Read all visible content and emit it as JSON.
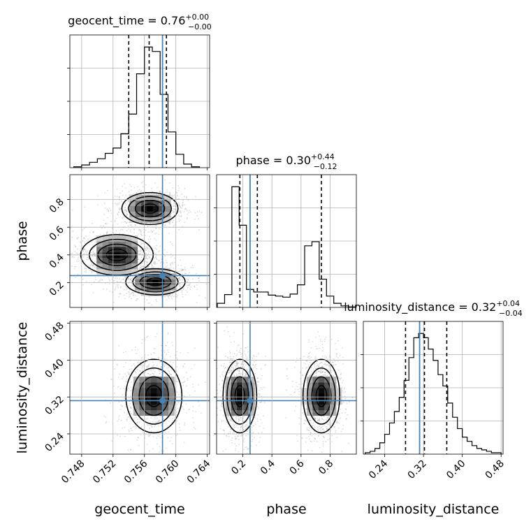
{
  "chart_data": [
    {
      "type": "histogram",
      "panel": "geocent_time-marginal",
      "title_label": "geocent_time = 0.76",
      "title_sup": "+0.00",
      "title_sub": "−0.00",
      "x": [
        0.7475,
        0.7485,
        0.7495,
        0.7505,
        0.7515,
        0.7525,
        0.7535,
        0.7545,
        0.7555,
        0.7565,
        0.7575,
        0.7585,
        0.7595,
        0.7605,
        0.7615,
        0.7625
      ],
      "values": [
        1,
        3,
        6,
        10,
        16,
        22,
        38,
        60,
        105,
        135,
        130,
        82,
        40,
        15,
        4,
        1
      ],
      "quantile_lines": [
        0.754,
        0.7566,
        0.7588
      ],
      "truth": 0.7583,
      "xlim": [
        0.7465,
        0.7643
      ]
    },
    {
      "type": "histogram",
      "panel": "phase-marginal",
      "title_label": "phase = 0.30",
      "title_sup": "+0.44",
      "title_sub": "−0.12",
      "x": [
        0.05,
        0.1,
        0.15,
        0.2,
        0.25,
        0.3,
        0.35,
        0.4,
        0.45,
        0.5,
        0.55,
        0.6,
        0.65,
        0.7,
        0.75,
        0.8,
        0.85,
        0.9,
        0.95
      ],
      "values": [
        8,
        25,
        235,
        160,
        35,
        30,
        30,
        24,
        22,
        20,
        26,
        44,
        120,
        128,
        55,
        22,
        8,
        3,
        1
      ],
      "quantile_lines": [
        0.18,
        0.3,
        0.74
      ],
      "truth": 0.25,
      "xlim": [
        0.02,
        0.98
      ]
    },
    {
      "type": "histogram",
      "panel": "luminosity_distance-marginal",
      "title_label": "luminosity_distance = 0.32",
      "title_sup": "+0.04",
      "title_sub": "−0.04",
      "x": [
        0.205,
        0.215,
        0.225,
        0.235,
        0.245,
        0.255,
        0.265,
        0.275,
        0.285,
        0.295,
        0.305,
        0.315,
        0.325,
        0.335,
        0.345,
        0.355,
        0.365,
        0.375,
        0.385,
        0.395,
        0.405,
        0.415,
        0.425,
        0.435,
        0.445,
        0.455,
        0.465,
        0.475
      ],
      "values": [
        1,
        2,
        4,
        8,
        14,
        22,
        30,
        40,
        52,
        68,
        82,
        85,
        82,
        74,
        66,
        56,
        48,
        36,
        26,
        18,
        12,
        9,
        6,
        4,
        3,
        2,
        1,
        1
      ],
      "quantile_lines": [
        0.283,
        0.322,
        0.368
      ],
      "truth": 0.312,
      "xlim": [
        0.196,
        0.484
      ]
    },
    {
      "type": "scatter",
      "panel": "phase-vs-geocent_time",
      "x_param": "geocent_time",
      "y_param": "phase",
      "clusters": [
        {
          "cx": 0.7574,
          "cy": 0.205,
          "sx": 0.0018,
          "sy": 0.045
        },
        {
          "cx": 0.7567,
          "cy": 0.735,
          "sx": 0.0017,
          "sy": 0.055
        },
        {
          "cx": 0.7525,
          "cy": 0.4,
          "sx": 0.0022,
          "sy": 0.07
        }
      ],
      "truth": {
        "x": 0.7583,
        "y": 0.25
      },
      "xlim": [
        0.7465,
        0.7643
      ],
      "ylim": [
        0.02,
        0.98
      ]
    },
    {
      "type": "scatter",
      "panel": "luminosity_distance-vs-geocent_time",
      "x_param": "geocent_time",
      "y_param": "luminosity_distance",
      "clusters": [
        {
          "cx": 0.7572,
          "cy": 0.322,
          "sx": 0.0017,
          "sy": 0.038
        }
      ],
      "truth": {
        "x": 0.7583,
        "y": 0.312
      },
      "xlim": [
        0.7465,
        0.7643
      ],
      "ylim": [
        0.196,
        0.484
      ]
    },
    {
      "type": "scatter",
      "panel": "luminosity_distance-vs-phase",
      "x_param": "phase",
      "y_param": "luminosity_distance",
      "clusters": [
        {
          "cx": 0.18,
          "cy": 0.322,
          "sx": 0.055,
          "sy": 0.038
        },
        {
          "cx": 0.74,
          "cy": 0.322,
          "sx": 0.06,
          "sy": 0.038
        }
      ],
      "truth": {
        "x": 0.25,
        "y": 0.312
      },
      "xlim": [
        0.02,
        0.98
      ],
      "ylim": [
        0.196,
        0.484
      ]
    }
  ],
  "axes": {
    "geocent_time": {
      "label": "geocent_time",
      "ticks": [
        0.748,
        0.752,
        0.756,
        0.76,
        0.764
      ],
      "tick_labels": [
        "0.748",
        "0.752",
        "0.756",
        "0.760",
        "0.764"
      ]
    },
    "phase": {
      "label": "phase",
      "ticks": [
        0.2,
        0.4,
        0.6,
        0.8
      ],
      "tick_labels": [
        "0.2",
        "0.4",
        "0.6",
        "0.8"
      ]
    },
    "luminosity_distance": {
      "label": "luminosity_distance",
      "ticks": [
        0.24,
        0.32,
        0.4,
        0.48
      ],
      "tick_labels": [
        "0.24",
        "0.32",
        "0.40",
        "0.48"
      ]
    }
  },
  "grid": true,
  "colors": {
    "truth": "#4682b4",
    "hist": "#000000",
    "points": "#888888"
  }
}
